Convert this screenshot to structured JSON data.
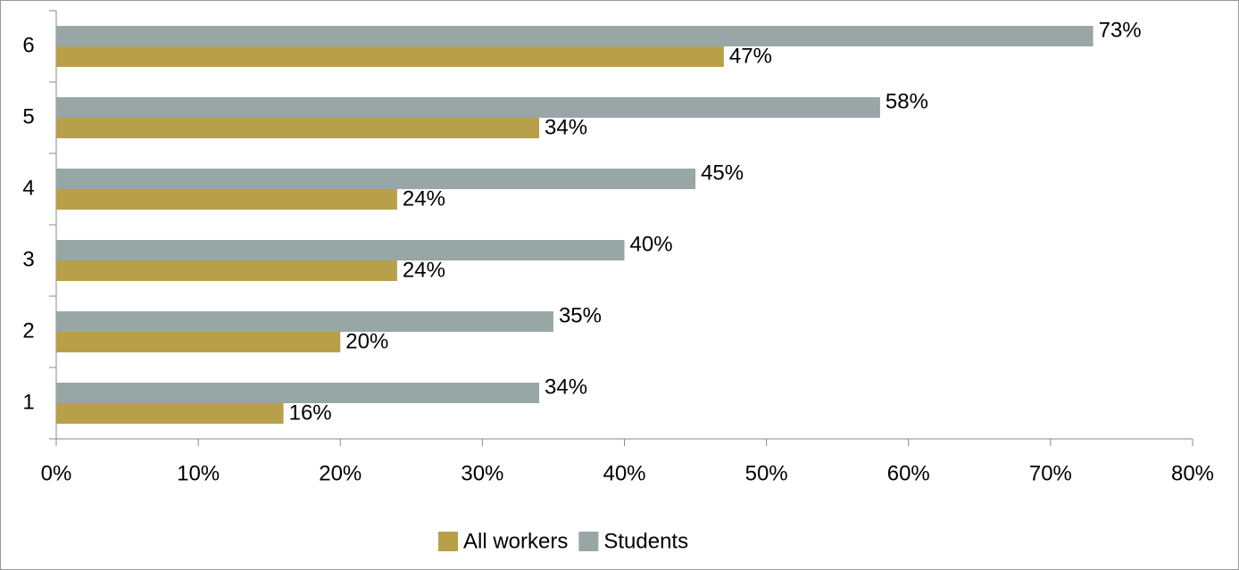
{
  "chart_data": {
    "type": "hbar",
    "categories": [
      "1",
      "2",
      "3",
      "4",
      "5",
      "6"
    ],
    "series": [
      {
        "name": "All workers",
        "color": "#b8a04a",
        "values": [
          16,
          20,
          24,
          24,
          34,
          47
        ],
        "value_labels": [
          "16%",
          "20%",
          "24%",
          "24%",
          "34%",
          "47%"
        ]
      },
      {
        "name": "Students",
        "color": "#98a7a5",
        "values": [
          34,
          35,
          40,
          45,
          58,
          73
        ],
        "value_labels": [
          "34%",
          "35%",
          "40%",
          "45%",
          "58%",
          "73%"
        ]
      }
    ],
    "xlim": [
      0,
      80
    ],
    "xticks": [
      {
        "value": 0,
        "label": "0%"
      },
      {
        "value": 10,
        "label": "10%"
      },
      {
        "value": 20,
        "label": "20%"
      },
      {
        "value": 30,
        "label": "30%"
      },
      {
        "value": 40,
        "label": "40%"
      },
      {
        "value": 50,
        "label": "50%"
      },
      {
        "value": 60,
        "label": "60%"
      },
      {
        "value": 70,
        "label": "70%"
      },
      {
        "value": 80,
        "label": "80%"
      }
    ],
    "legend": "bottom"
  }
}
